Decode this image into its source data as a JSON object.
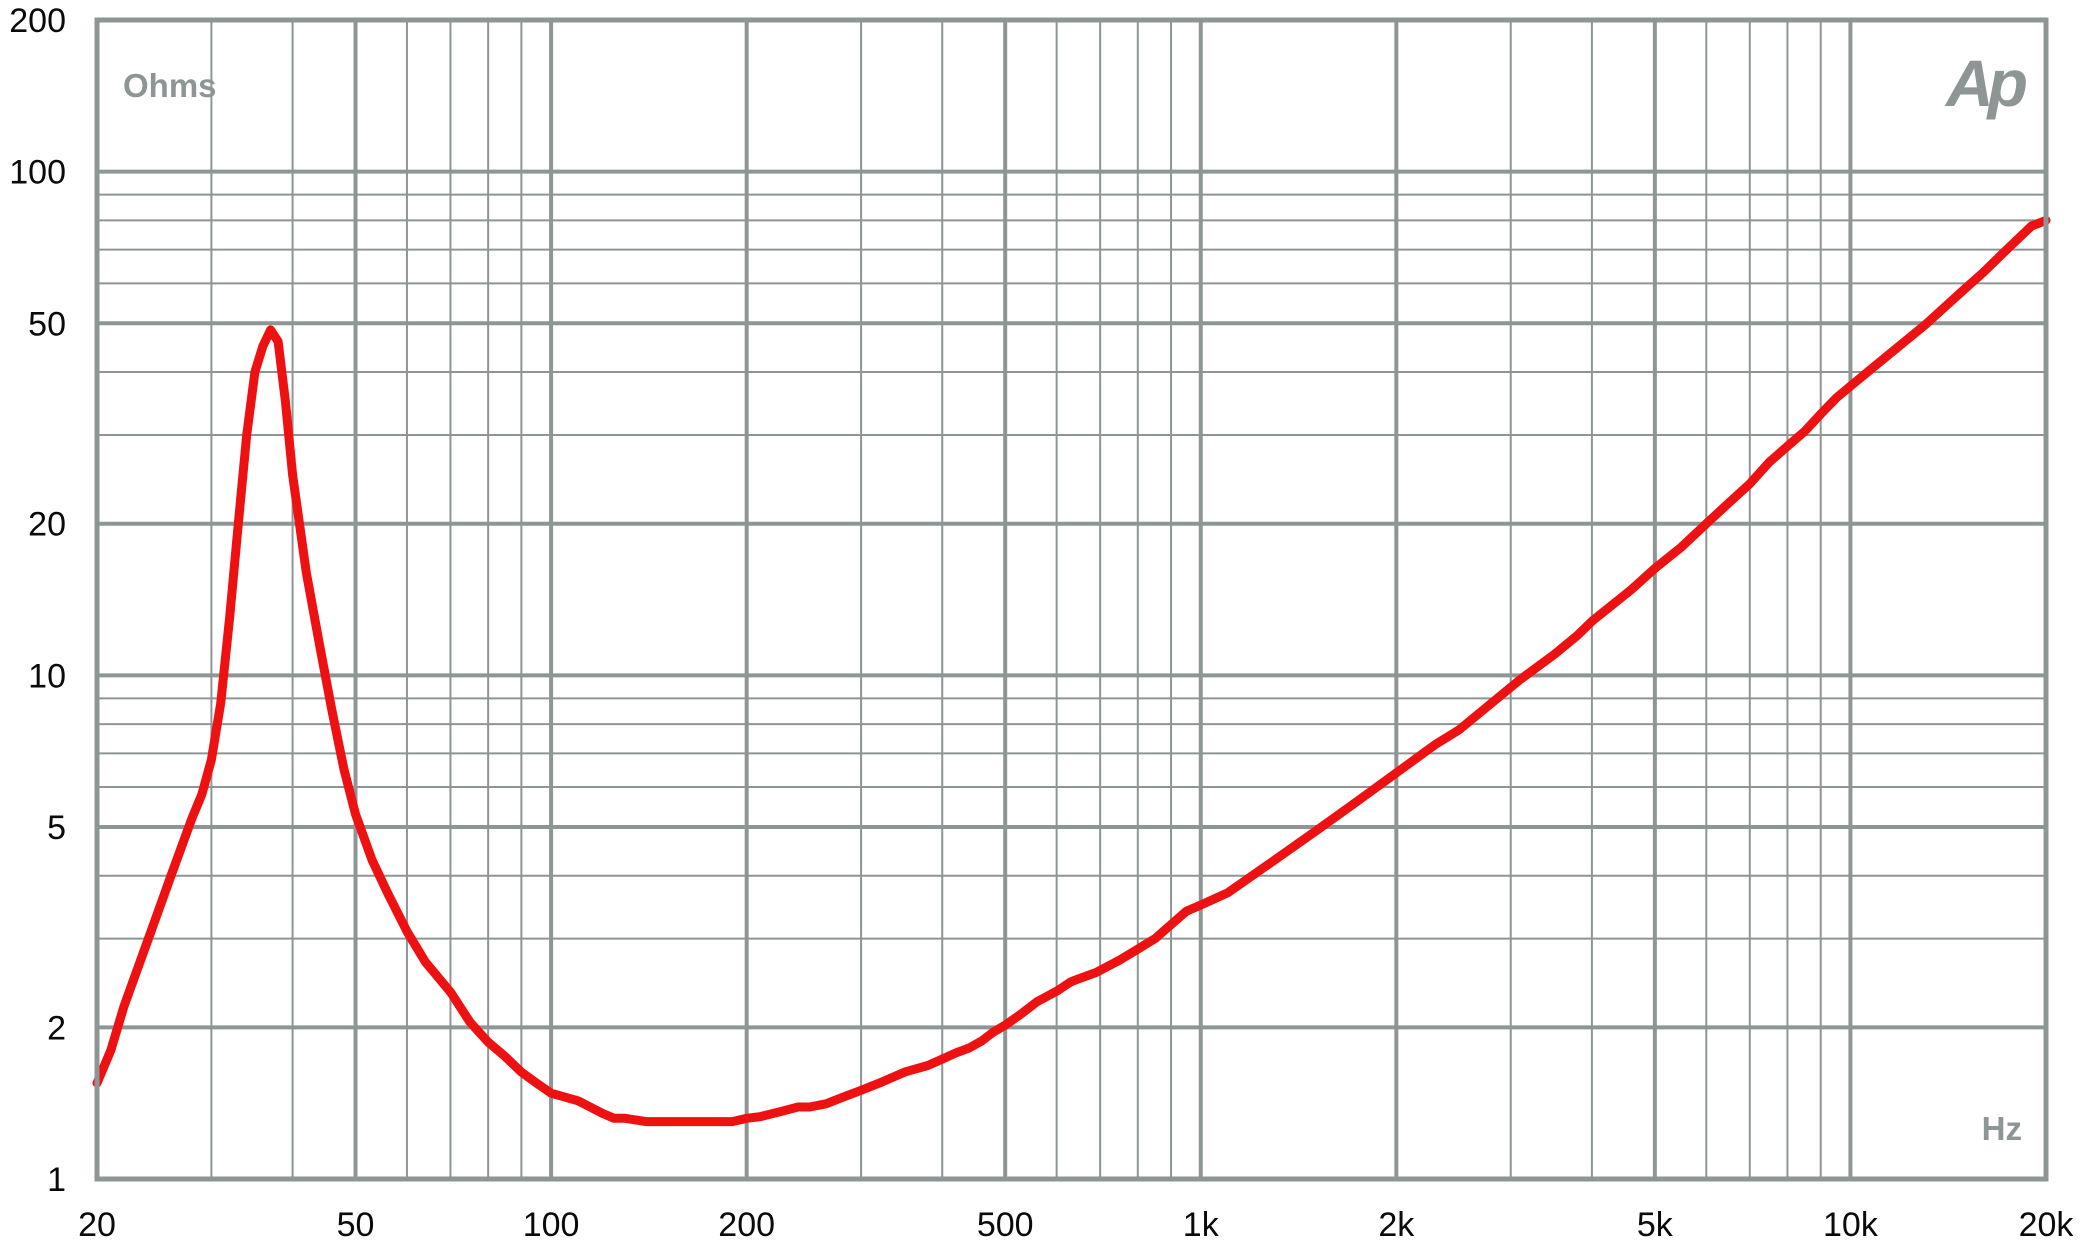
{
  "logo": {
    "text": "Ap"
  },
  "chart_data": {
    "type": "line",
    "title": "",
    "xlabel": "Hz",
    "ylabel": "Ohms",
    "x_scale": "log",
    "y_scale": "log",
    "xlim": [
      20,
      20000
    ],
    "ylim": [
      1,
      200
    ],
    "grid": true,
    "colors": {
      "grid": "#8e9695",
      "series": "#ee1111",
      "text": "#0a0a0a",
      "unit_text": "#8e9695"
    },
    "x_ticks": [
      {
        "value": 20,
        "label": "20"
      },
      {
        "value": 50,
        "label": "50"
      },
      {
        "value": 100,
        "label": "100"
      },
      {
        "value": 200,
        "label": "200"
      },
      {
        "value": 500,
        "label": "500"
      },
      {
        "value": 1000,
        "label": "1k"
      },
      {
        "value": 2000,
        "label": "2k"
      },
      {
        "value": 5000,
        "label": "5k"
      },
      {
        "value": 10000,
        "label": "10k"
      },
      {
        "value": 20000,
        "label": "20k"
      }
    ],
    "y_ticks": [
      {
        "value": 1,
        "label": "1"
      },
      {
        "value": 2,
        "label": "2"
      },
      {
        "value": 5,
        "label": "5"
      },
      {
        "value": 10,
        "label": "10"
      },
      {
        "value": 20,
        "label": "20"
      },
      {
        "value": 50,
        "label": "50"
      },
      {
        "value": 100,
        "label": "100"
      },
      {
        "value": 200,
        "label": "200"
      }
    ],
    "x_major_grid": [
      20,
      50,
      100,
      200,
      500,
      1000,
      2000,
      5000,
      10000,
      20000
    ],
    "x_minor_grid": [
      30,
      40,
      60,
      70,
      80,
      90,
      300,
      400,
      600,
      700,
      800,
      900,
      3000,
      4000,
      6000,
      7000,
      8000,
      9000
    ],
    "y_major_grid": [
      1,
      2,
      5,
      10,
      20,
      50,
      100,
      200
    ],
    "y_minor_grid": [
      3,
      4,
      6,
      7,
      8,
      9,
      30,
      40,
      60,
      70,
      80,
      90
    ],
    "series": [
      {
        "x": [
          20,
          21,
          22,
          24,
          26,
          28,
          29,
          30,
          31,
          32,
          33,
          34,
          35,
          36,
          37,
          38,
          39,
          40,
          42,
          44,
          46,
          48,
          50,
          53,
          56,
          60,
          64,
          70,
          75,
          80,
          85,
          90,
          95,
          100,
          110,
          120,
          125,
          130,
          140,
          150,
          160,
          180,
          190,
          200,
          210,
          225,
          240,
          250,
          265,
          280,
          300,
          320,
          350,
          380,
          400,
          420,
          440,
          460,
          480,
          500,
          530,
          560,
          600,
          630,
          650,
          690,
          750,
          800,
          850,
          900,
          950,
          1000,
          1100,
          1200,
          1300,
          1400,
          1500,
          1700,
          1800,
          1900,
          2000,
          2100,
          2200,
          2300,
          2500,
          2800,
          3100,
          3500,
          3800,
          4000,
          4300,
          4600,
          5000,
          5500,
          6000,
          6500,
          7000,
          7500,
          8000,
          8500,
          9000,
          9500,
          10000,
          11000,
          12000,
          13000,
          14000,
          15000,
          16000,
          17000,
          18000,
          19000,
          20000
        ],
        "y": [
          1.55,
          1.8,
          2.2,
          3.0,
          4.0,
          5.2,
          5.8,
          6.8,
          8.8,
          13,
          20,
          30,
          40,
          45,
          48.5,
          46,
          35,
          25,
          16,
          11.5,
          8.5,
          6.5,
          5.3,
          4.3,
          3.7,
          3.1,
          2.7,
          2.35,
          2.05,
          1.87,
          1.75,
          1.63,
          1.55,
          1.48,
          1.43,
          1.35,
          1.32,
          1.32,
          1.3,
          1.3,
          1.3,
          1.3,
          1.3,
          1.32,
          1.33,
          1.36,
          1.39,
          1.39,
          1.41,
          1.45,
          1.5,
          1.55,
          1.63,
          1.68,
          1.73,
          1.78,
          1.82,
          1.88,
          1.96,
          2.02,
          2.13,
          2.25,
          2.36,
          2.46,
          2.5,
          2.57,
          2.72,
          2.86,
          3.0,
          3.2,
          3.4,
          3.5,
          3.7,
          4.0,
          4.3,
          4.6,
          4.9,
          5.5,
          5.8,
          6.1,
          6.4,
          6.7,
          7.0,
          7.3,
          7.8,
          8.8,
          9.8,
          11,
          12,
          12.8,
          13.8,
          14.8,
          16.3,
          18,
          20,
          22,
          24,
          26.5,
          28.5,
          30.5,
          33,
          35.5,
          37.5,
          41.5,
          45.5,
          49.5,
          54,
          58.5,
          63,
          68,
          73,
          78,
          80
        ]
      }
    ]
  }
}
